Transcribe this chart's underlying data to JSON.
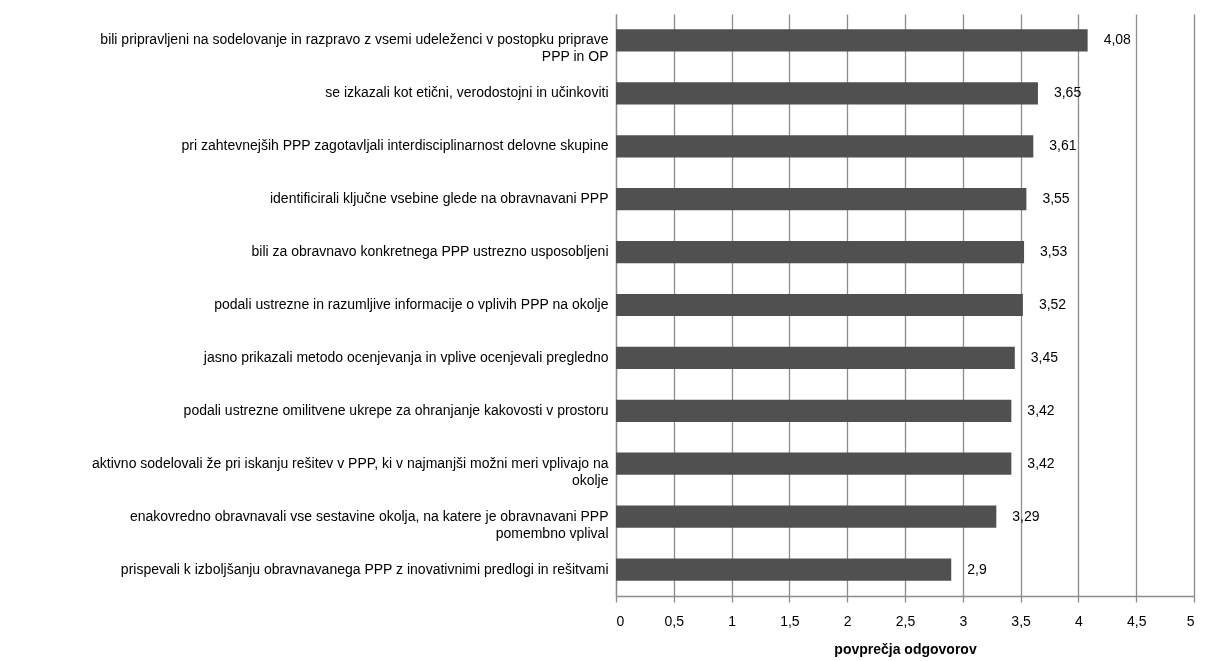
{
  "chart_data": {
    "type": "bar",
    "orientation": "horizontal",
    "categories": [
      "bili pripravljeni na sodelovanje in razpravo z vsemi udeleženci v postopku priprave PPP in OP",
      "se izkazali kot etični, verodostojni in učinkoviti",
      "pri zahtevnejših PPP zagotavljali interdisciplinarnost delovne skupine",
      "identificirali ključne vsebine glede na obravnavani PPP",
      "bili za obravnavo konkretnega PPP ustrezno usposobljeni",
      "podali ustrezne in razumljive informacije o vplivih PPP na okolje",
      "jasno prikazali metodo ocenjevanja in vplive ocenjevali pregledno",
      "podali ustrezne omilitvene ukrepe za ohranjanje kakovosti v prostoru",
      "aktivno sodelovali že pri iskanju rešitev v PPP, ki v najmanjši možni meri vplivajo na okolje",
      "enakovredno obravnavali vse sestavine okolja, na katere je obravnavani PPP pomembno vplival",
      "prispevali k izboljšanju obravnavanega PPP z inovativnimi predlogi in rešitvami"
    ],
    "values": [
      4.08,
      3.65,
      3.61,
      3.55,
      3.53,
      3.52,
      3.45,
      3.42,
      3.42,
      3.29,
      2.9
    ],
    "value_labels": [
      "4,08",
      "3,65",
      "3,61",
      "3,55",
      "3,53",
      "3,52",
      "3,45",
      "3,42",
      "3,42",
      "3,29",
      "2,9"
    ],
    "color": "#505050",
    "xlabel": "povprečja odgovorov",
    "xlim": [
      0,
      5
    ],
    "xticks": [
      0,
      {
        "value": 0.5,
        "label": "0,5"
      },
      1,
      {
        "value": 1.5,
        "label": "1,5"
      },
      2,
      {
        "value": 2.5,
        "label": "2,5"
      },
      3,
      {
        "value": 3.5,
        "label": "3,5"
      },
      4,
      {
        "value": 4.5,
        "label": "4,5"
      },
      5
    ],
    "grid": "x"
  }
}
